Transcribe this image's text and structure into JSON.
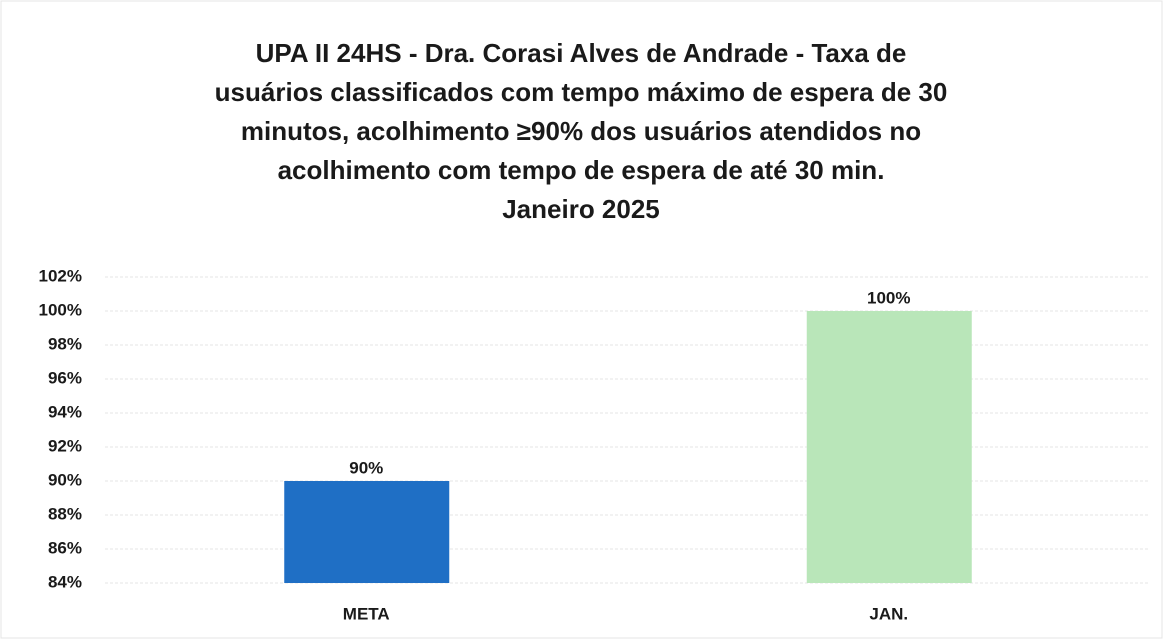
{
  "chart_data": {
    "type": "bar",
    "title": [
      "UPA II 24HS - Dra. Corasi Alves de Andrade - Taxa de",
      "usuários classificados com tempo máximo de espera de 30",
      "minutos, acolhimento ≥90% dos usuários atendidos no",
      "acolhimento com tempo de espera de até 30 min.",
      "Janeiro 2025"
    ],
    "categories": [
      "META",
      "JAN."
    ],
    "values": [
      90,
      100
    ],
    "value_labels": [
      "90%",
      "100%"
    ],
    "colors": [
      "#1f6fc5",
      "#b9e6b9"
    ],
    "ylim": [
      84,
      102
    ],
    "yticks": [
      {
        "value": 84,
        "label": "84%"
      },
      {
        "value": 86,
        "label": "86%"
      },
      {
        "value": 88,
        "label": "88%"
      },
      {
        "value": 90,
        "label": "90%"
      },
      {
        "value": 92,
        "label": "92%"
      },
      {
        "value": 94,
        "label": "94%"
      },
      {
        "value": 96,
        "label": "96%"
      },
      {
        "value": 98,
        "label": "98%"
      },
      {
        "value": 100,
        "label": "100%"
      },
      {
        "value": 102,
        "label": "102%"
      }
    ],
    "grid": true
  }
}
